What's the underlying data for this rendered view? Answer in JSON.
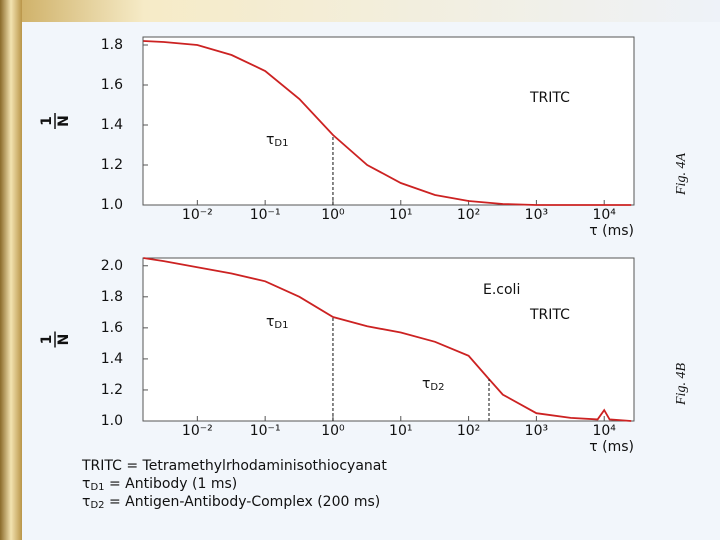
{
  "chart_data": [
    {
      "type": "line",
      "xscale": "log",
      "color": "#cc2222",
      "fig_label": "Fig. 4A",
      "y_label_numerator": "1",
      "y_label_denominator": "N",
      "x_label": "τ (ms)",
      "icon_labels": [
        "TRITC"
      ],
      "x": [
        0.0016,
        0.0032,
        0.01,
        0.032,
        0.1,
        0.32,
        1,
        3.2,
        10,
        32,
        100,
        320,
        1000,
        3200,
        10000,
        25000
      ],
      "values": [
        1.82,
        1.815,
        1.8,
        1.75,
        1.67,
        1.53,
        1.35,
        1.2,
        1.11,
        1.05,
        1.02,
        1.005,
        1.0,
        1.0,
        1.0,
        1.0
      ],
      "xlim": [
        0.00158,
        27500
      ],
      "ylim": [
        1.0,
        1.84
      ],
      "xticks": [
        {
          "value": 0.01,
          "label": "10⁻²"
        },
        {
          "value": 0.1,
          "label": "10⁻¹"
        },
        {
          "value": 1,
          "label": "10⁰"
        },
        {
          "value": 10,
          "label": "10¹"
        },
        {
          "value": 100,
          "label": "10²"
        },
        {
          "value": 1000,
          "label": "10³"
        },
        {
          "value": 10000,
          "label": "10⁴"
        }
      ],
      "yticks": [
        {
          "value": 1,
          "label": "1.0"
        },
        1.2,
        1.4,
        1.6,
        1.8
      ],
      "annotations": [
        {
          "label": "τ",
          "subscript": "D1",
          "x": 1,
          "y": 1.35
        }
      ]
    },
    {
      "type": "line",
      "xscale": "log",
      "color": "#cc2222",
      "fig_label": "Fig. 4B",
      "y_label_numerator": "1",
      "y_label_denominator": "N",
      "x_label": "τ (ms)",
      "icon_labels": [
        "E.coli",
        "TRITC"
      ],
      "x": [
        0.0016,
        0.0032,
        0.01,
        0.032,
        0.1,
        0.32,
        1,
        3.2,
        10,
        32,
        100,
        200,
        320,
        1000,
        3200,
        8000,
        10000,
        12000,
        25000
      ],
      "values": [
        2.05,
        2.03,
        1.99,
        1.95,
        1.9,
        1.8,
        1.67,
        1.61,
        1.57,
        1.51,
        1.42,
        1.27,
        1.17,
        1.05,
        1.02,
        1.01,
        1.07,
        1.01,
        1.0
      ],
      "xlim": [
        0.00158,
        27500
      ],
      "ylim": [
        1.0,
        2.05
      ],
      "xticks": [
        {
          "value": 0.01,
          "label": "10⁻²"
        },
        {
          "value": 0.1,
          "label": "10⁻¹"
        },
        {
          "value": 1,
          "label": "10⁰"
        },
        {
          "value": 10,
          "label": "10¹"
        },
        {
          "value": 100,
          "label": "10²"
        },
        {
          "value": 1000,
          "label": "10³"
        },
        {
          "value": 10000,
          "label": "10⁴"
        }
      ],
      "yticks": [
        {
          "value": 1,
          "label": "1.0"
        },
        1.2,
        1.4,
        1.6,
        1.8,
        {
          "value": 2,
          "label": "2.0"
        }
      ],
      "annotations": [
        {
          "label": "τ",
          "subscript": "D1",
          "x": 1,
          "y": 1.67
        },
        {
          "label": "τ",
          "subscript": "D2",
          "x": 200,
          "y": 1.27
        }
      ]
    }
  ],
  "notes": [
    {
      "symbol": "TRITC",
      "subscript": "",
      "text": " = Tetramethylrhodaminisothiocyanat"
    },
    {
      "symbol": "τ",
      "subscript": "D1",
      "text": " = Antibody (1 ms)"
    },
    {
      "symbol": "τ",
      "subscript": "D2",
      "text": " = Antigen-Antibody-Complex (200 ms)"
    }
  ]
}
